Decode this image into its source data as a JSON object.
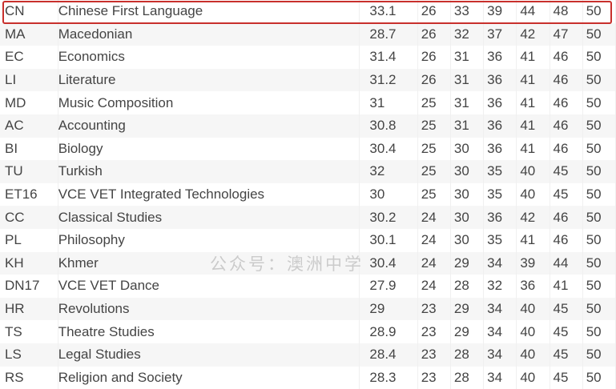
{
  "rows": [
    {
      "code": "CN",
      "subject": "Chinese First Language",
      "avg": "33.1",
      "s": [
        "26",
        "33",
        "39",
        "44",
        "48",
        "50"
      ],
      "highlighted": true
    },
    {
      "code": "MA",
      "subject": "Macedonian",
      "avg": "28.7",
      "s": [
        "26",
        "32",
        "37",
        "42",
        "47",
        "50"
      ]
    },
    {
      "code": "EC",
      "subject": "Economics",
      "avg": "31.4",
      "s": [
        "26",
        "31",
        "36",
        "41",
        "46",
        "50"
      ]
    },
    {
      "code": "LI",
      "subject": "Literature",
      "avg": "31.2",
      "s": [
        "26",
        "31",
        "36",
        "41",
        "46",
        "50"
      ]
    },
    {
      "code": "MD",
      "subject": "Music Composition",
      "avg": "31",
      "s": [
        "25",
        "31",
        "36",
        "41",
        "46",
        "50"
      ]
    },
    {
      "code": "AC",
      "subject": "Accounting",
      "avg": "30.8",
      "s": [
        "25",
        "31",
        "36",
        "41",
        "46",
        "50"
      ]
    },
    {
      "code": "BI",
      "subject": "Biology",
      "avg": "30.4",
      "s": [
        "25",
        "30",
        "36",
        "41",
        "46",
        "50"
      ]
    },
    {
      "code": "TU",
      "subject": "Turkish",
      "avg": "32",
      "s": [
        "25",
        "30",
        "35",
        "40",
        "45",
        "50"
      ]
    },
    {
      "code": "ET16",
      "subject": "VCE VET Integrated Technologies",
      "avg": "30",
      "s": [
        "25",
        "30",
        "35",
        "40",
        "45",
        "50"
      ]
    },
    {
      "code": "CC",
      "subject": "Classical Studies",
      "avg": "30.2",
      "s": [
        "24",
        "30",
        "36",
        "42",
        "46",
        "50"
      ]
    },
    {
      "code": "PL",
      "subject": "Philosophy",
      "avg": "30.1",
      "s": [
        "24",
        "30",
        "35",
        "41",
        "46",
        "50"
      ]
    },
    {
      "code": "KH",
      "subject": "Khmer",
      "avg": "30.4",
      "s": [
        "24",
        "29",
        "34",
        "39",
        "44",
        "50"
      ]
    },
    {
      "code": "DN17",
      "subject": "VCE VET Dance",
      "avg": "27.9",
      "s": [
        "24",
        "28",
        "32",
        "36",
        "41",
        "50"
      ]
    },
    {
      "code": "HR",
      "subject": "Revolutions",
      "avg": "29",
      "s": [
        "23",
        "29",
        "34",
        "40",
        "45",
        "50"
      ]
    },
    {
      "code": "TS",
      "subject": "Theatre Studies",
      "avg": "28.9",
      "s": [
        "23",
        "29",
        "34",
        "40",
        "45",
        "50"
      ]
    },
    {
      "code": "LS",
      "subject": "Legal Studies",
      "avg": "28.4",
      "s": [
        "23",
        "28",
        "34",
        "40",
        "45",
        "50"
      ]
    },
    {
      "code": "RS",
      "subject": "Religion and Society",
      "avg": "28.3",
      "s": [
        "23",
        "28",
        "34",
        "40",
        "45",
        "50"
      ]
    }
  ],
  "watermark": {
    "logo": "澳洲中学",
    "caption": "公众号：澳洲中学"
  },
  "colors": {
    "highlight_border": "#c8302c",
    "text": "#444444",
    "stripe": "#f6f6f6"
  }
}
